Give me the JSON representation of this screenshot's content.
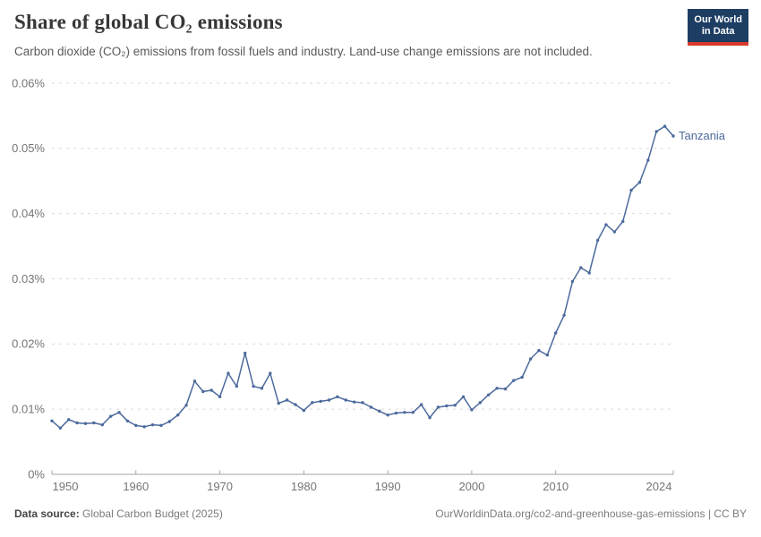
{
  "header": {
    "title": "Share of global CO₂ emissions",
    "subtitle": "Carbon dioxide (CO₂) emissions from fossil fuels and industry. Land-use change emissions are not included.",
    "logo": {
      "line1": "Our World",
      "line2": "in Data",
      "bg_color": "#1d3d63",
      "accent_color": "#d93a2b"
    }
  },
  "chart_data": {
    "type": "line",
    "title": "Share of global CO₂ emissions",
    "unit": "%",
    "grid": "horizontal dashed",
    "legend_position": "end-of-line label",
    "xlim": [
      1950,
      2024
    ],
    "ylim": [
      0,
      0.06
    ],
    "x_axis": {
      "tick_values": [
        1950,
        1960,
        1970,
        1980,
        1990,
        2000,
        2010,
        2024
      ],
      "tick_labels": [
        "1950",
        "1960",
        "1970",
        "1980",
        "1990",
        "2000",
        "2010",
        "2024"
      ]
    },
    "y_axis": {
      "tick_values": [
        0,
        0.01,
        0.02,
        0.03,
        0.04,
        0.05,
        0.06
      ],
      "tick_labels": [
        "0%",
        "0.01%",
        "0.02%",
        "0.03%",
        "0.04%",
        "0.05%",
        "0.06%"
      ]
    },
    "series": [
      {
        "name": "Tanzania",
        "color": "#4c6a9c",
        "years": [
          1950,
          1951,
          1952,
          1953,
          1954,
          1955,
          1956,
          1957,
          1958,
          1959,
          1960,
          1961,
          1962,
          1963,
          1964,
          1965,
          1966,
          1967,
          1968,
          1969,
          1970,
          1971,
          1972,
          1973,
          1974,
          1975,
          1976,
          1977,
          1978,
          1979,
          1980,
          1981,
          1982,
          1983,
          1984,
          1985,
          1986,
          1987,
          1988,
          1989,
          1990,
          1991,
          1992,
          1993,
          1994,
          1995,
          1996,
          1997,
          1998,
          1999,
          2000,
          2001,
          2002,
          2003,
          2004,
          2005,
          2006,
          2007,
          2008,
          2009,
          2010,
          2011,
          2012,
          2013,
          2014,
          2015,
          2016,
          2017,
          2018,
          2019,
          2020,
          2021,
          2022,
          2023,
          2024
        ],
        "values": [
          0.0082,
          0.0071,
          0.0084,
          0.0079,
          0.0078,
          0.0079,
          0.0076,
          0.0089,
          0.0095,
          0.0082,
          0.0075,
          0.0073,
          0.0076,
          0.0075,
          0.0081,
          0.0091,
          0.0106,
          0.0143,
          0.0127,
          0.0129,
          0.0119,
          0.0155,
          0.0135,
          0.0186,
          0.0135,
          0.0132,
          0.0155,
          0.0109,
          0.0114,
          0.0107,
          0.0098,
          0.011,
          0.0112,
          0.0114,
          0.0119,
          0.0114,
          0.0111,
          0.011,
          0.0103,
          0.0097,
          0.0091,
          0.0094,
          0.0095,
          0.0095,
          0.0107,
          0.0087,
          0.0103,
          0.0105,
          0.0106,
          0.0119,
          0.0099,
          0.011,
          0.0122,
          0.0132,
          0.0131,
          0.0144,
          0.0149,
          0.0177,
          0.019,
          0.0183,
          0.0217,
          0.0244,
          0.0296,
          0.0317,
          0.0309,
          0.0359,
          0.0383,
          0.0372,
          0.0388,
          0.0436,
          0.0448,
          0.0482,
          0.0526,
          0.0534,
          0.0519
        ]
      }
    ],
    "end_label": "Tanzania",
    "colors": {
      "line": "#4c6a9c",
      "grid": "#dadada",
      "axis": "#a3a3a3",
      "tick_text": "#757575"
    }
  },
  "footer": {
    "source_label": "Data source:",
    "source_value": "Global Carbon Budget (2025)",
    "link_text": "OurWorldinData.org/co2-and-greenhouse-gas-emissions | CC BY"
  }
}
